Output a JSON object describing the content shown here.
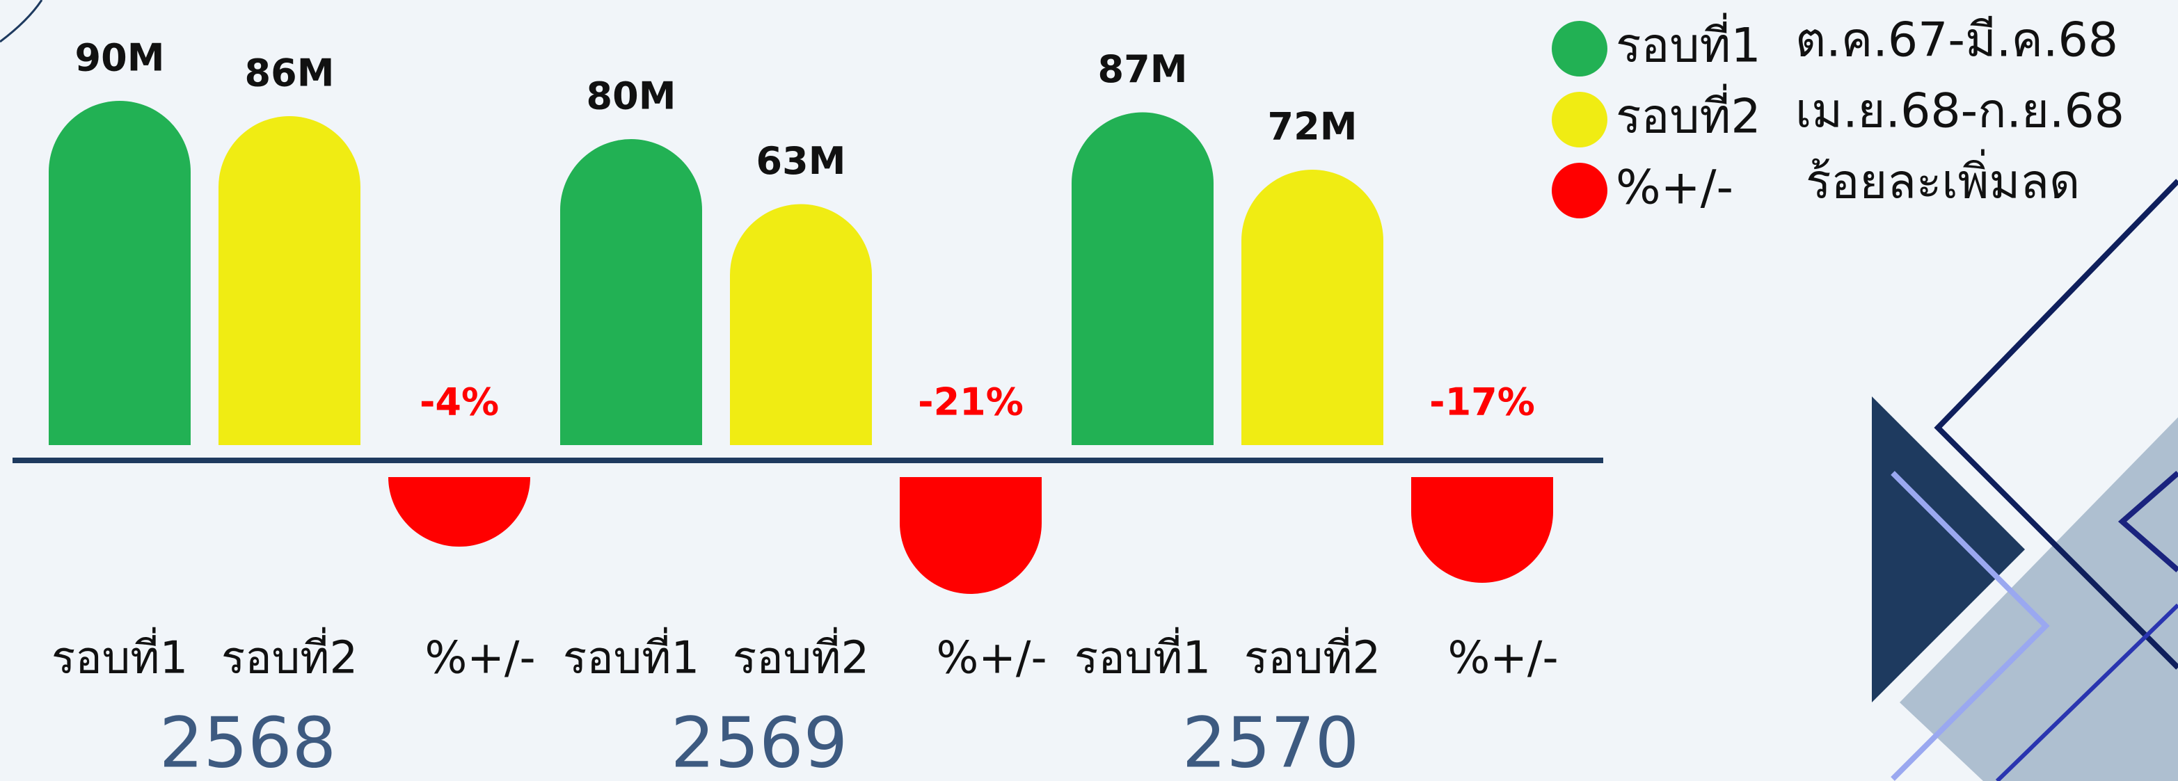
{
  "chart_data": {
    "type": "bar",
    "categories": [
      "2568",
      "2569",
      "2570"
    ],
    "series": [
      {
        "name": "รอบที่1",
        "description": "ต.ค.67-มี.ค.68",
        "color": "#22b154",
        "values": [
          90,
          80,
          87
        ],
        "value_labels": [
          "90M",
          "80M",
          "87M"
        ]
      },
      {
        "name": "รอบที่2",
        "description": "เม.ย.68-ก.ย.68",
        "color": "#f0ec13",
        "values": [
          86,
          63,
          72
        ],
        "value_labels": [
          "86M",
          "63M",
          "72M"
        ]
      },
      {
        "name": "%+/-",
        "description": "ร้อยละเพิ่มลด",
        "color": "#ff0000",
        "values": [
          -4,
          -21,
          -17
        ],
        "value_labels": [
          "-4%",
          "-21%",
          "-17%"
        ]
      }
    ]
  }
}
